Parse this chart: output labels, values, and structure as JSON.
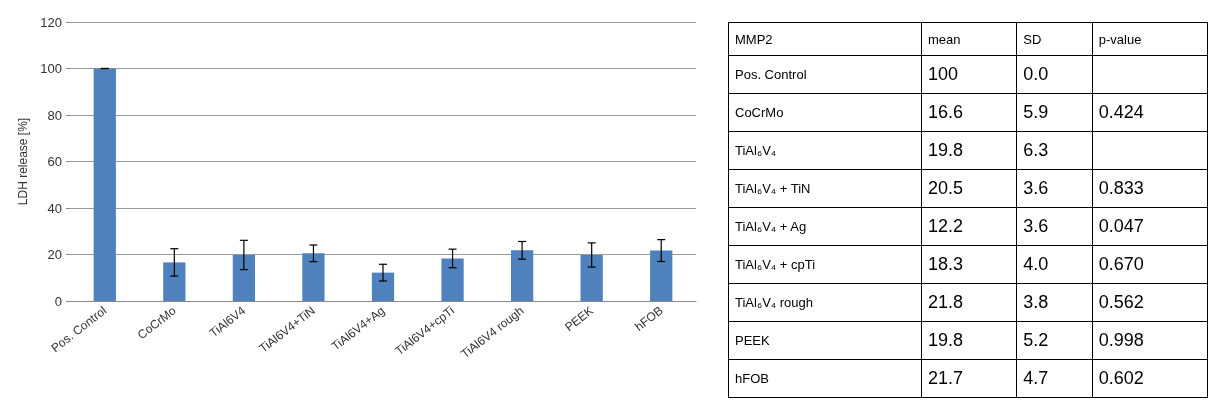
{
  "chart_data": [
    {
      "type": "bar",
      "ylabel": "LDH release [%]",
      "categories": [
        "Pos. Control",
        "CoCrMo",
        "TiAl6V4",
        "TiAl6V4+TiN",
        "TiAl6V4+Ag",
        "TiAl6V4+cpTi",
        "TiAl6V4 rough",
        "PEEK",
        "hFOB"
      ],
      "values": [
        100,
        16.6,
        19.8,
        20.5,
        12.2,
        18.3,
        21.8,
        19.8,
        21.7
      ],
      "errors": [
        0,
        5.9,
        6.3,
        3.6,
        3.6,
        4.0,
        3.8,
        5.2,
        4.7
      ],
      "color": "#4f81bd",
      "ylim": [
        0,
        120
      ],
      "yticks": [
        0,
        20,
        40,
        60,
        80,
        100,
        120
      ],
      "grid": "y"
    },
    {
      "type": "other",
      "title": "MMP2",
      "categories": [
        "mean",
        "SD",
        "p-value"
      ],
      "y_categories": [
        "Pos. Control",
        "CoCrMo",
        "TiAl₆V₄",
        "TiAl₆V₄ + TiN",
        "TiAl₆V₄ + Ag",
        "TiAl₆V₄ + cpTi",
        "TiAl₆V₄ rough",
        "PEEK",
        "hFOB"
      ],
      "cell_labels": [
        [
          "100",
          "0.0",
          null
        ],
        [
          "16.6",
          "5.9",
          "0.424"
        ],
        [
          "19.8",
          "6.3",
          null
        ],
        [
          "20.5",
          "3.6",
          "0.833"
        ],
        [
          "12.2",
          "3.6",
          "0.047"
        ],
        [
          "18.3",
          "4.0",
          "0.670"
        ],
        [
          "21.8",
          "3.8",
          "0.562"
        ],
        [
          "19.8",
          "5.2",
          "0.998"
        ],
        [
          "21.7",
          "4.7",
          "0.602"
        ]
      ]
    }
  ]
}
